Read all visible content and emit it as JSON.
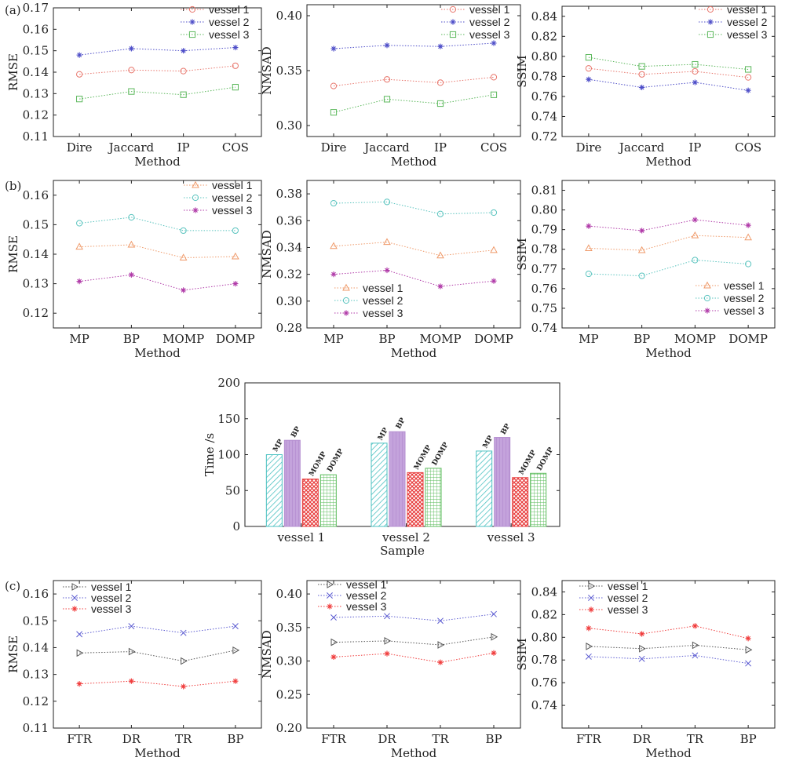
{
  "figure": {
    "panel_labels": [
      "(a)",
      "(b)",
      "(c)"
    ]
  },
  "colors": {
    "vessel1_a": "#e8766c",
    "vessel2_a": "#4d4dc8",
    "vessel3_a": "#5cb85c",
    "vessel1_b": "#ef9a6a",
    "vessel2_b": "#5bc4bf",
    "vessel3_b": "#b03aa8",
    "vessel1_c": "#555555",
    "vessel2_c": "#5b5bd1",
    "vessel3_c": "#f03c3c",
    "bar_MP": "#4dc2c2",
    "bar_BP": "#b58fd0",
    "bar_MOMP": "#e83c3c",
    "bar_DOMP": "#5cbc5c"
  },
  "chart_data": [
    {
      "id": "a-rmse",
      "type": "line",
      "panel": "(a)",
      "categories": [
        "Dire",
        "Jaccard",
        "IP",
        "COS"
      ],
      "xlabel": "Method",
      "ylabel": "RMSE",
      "ylim": [
        0.11,
        0.17
      ],
      "yticks": [
        "0.11",
        "0.12",
        "0.13",
        "0.14",
        "0.15",
        "0.16",
        "0.17"
      ],
      "legend": "top-right",
      "series": [
        {
          "name": "vessel 1",
          "marker": "circle",
          "color_key": "vessel1_a",
          "values": [
            0.139,
            0.141,
            0.1405,
            0.143
          ]
        },
        {
          "name": "vessel 2",
          "marker": "star",
          "color_key": "vessel2_a",
          "values": [
            0.148,
            0.151,
            0.15,
            0.1515
          ]
        },
        {
          "name": "vessel 3",
          "marker": "square",
          "color_key": "vessel3_a",
          "values": [
            0.1275,
            0.131,
            0.1295,
            0.133
          ]
        }
      ]
    },
    {
      "id": "a-nmsad",
      "type": "line",
      "panel": "(a)",
      "categories": [
        "Dire",
        "Jaccard",
        "IP",
        "COS"
      ],
      "xlabel": "Method",
      "ylabel": "NMSAD",
      "ylim": [
        0.29,
        0.41
      ],
      "yticks": [
        "0.30",
        "0.35",
        "0.40"
      ],
      "legend": "top-right",
      "series": [
        {
          "name": "vessel 1",
          "marker": "circle",
          "color_key": "vessel1_a",
          "values": [
            0.336,
            0.342,
            0.339,
            0.344
          ]
        },
        {
          "name": "vessel 2",
          "marker": "star",
          "color_key": "vessel2_a",
          "values": [
            0.37,
            0.373,
            0.372,
            0.375
          ]
        },
        {
          "name": "vessel 3",
          "marker": "square",
          "color_key": "vessel3_a",
          "values": [
            0.312,
            0.324,
            0.32,
            0.328
          ]
        }
      ]
    },
    {
      "id": "a-ssim",
      "type": "line",
      "panel": "(a)",
      "categories": [
        "Dire",
        "Jaccard",
        "IP",
        "COS"
      ],
      "xlabel": "Method",
      "ylabel": "SSIM",
      "ylim": [
        0.72,
        0.85
      ],
      "yticks": [
        "0.72",
        "0.74",
        "0.76",
        "0.78",
        "0.80",
        "0.82",
        "0.84"
      ],
      "legend": "top-right",
      "series": [
        {
          "name": "vessel 1",
          "marker": "circle",
          "color_key": "vessel1_a",
          "values": [
            0.788,
            0.782,
            0.785,
            0.779
          ]
        },
        {
          "name": "vessel 2",
          "marker": "star",
          "color_key": "vessel2_a",
          "values": [
            0.777,
            0.769,
            0.774,
            0.766
          ]
        },
        {
          "name": "vessel 3",
          "marker": "square",
          "color_key": "vessel3_a",
          "values": [
            0.799,
            0.79,
            0.792,
            0.787
          ]
        }
      ]
    },
    {
      "id": "b-rmse",
      "type": "line",
      "panel": "(b)",
      "categories": [
        "MP",
        "BP",
        "MOMP",
        "DOMP"
      ],
      "xlabel": "Method",
      "ylabel": "RMSE",
      "ylim": [
        0.115,
        0.165
      ],
      "yticks": [
        "0.12",
        "0.13",
        "0.14",
        "0.15",
        "0.16"
      ],
      "legend": "top-right",
      "series": [
        {
          "name": "vessel 1",
          "marker": "triangle",
          "color_key": "vessel1_b",
          "values": [
            0.1425,
            0.1432,
            0.1388,
            0.1392
          ]
        },
        {
          "name": "vessel 2",
          "marker": "circle",
          "color_key": "vessel2_b",
          "values": [
            0.1505,
            0.1525,
            0.148,
            0.148
          ]
        },
        {
          "name": "vessel 3",
          "marker": "star",
          "color_key": "vessel3_b",
          "values": [
            0.1308,
            0.133,
            0.1278,
            0.13
          ]
        }
      ]
    },
    {
      "id": "b-nmsad",
      "type": "line",
      "panel": "(b)",
      "categories": [
        "MP",
        "BP",
        "MOMP",
        "DOMP"
      ],
      "xlabel": "Method",
      "ylabel": "NMSAD",
      "ylim": [
        0.28,
        0.39
      ],
      "yticks": [
        "0.28",
        "0.30",
        "0.32",
        "0.34",
        "0.36",
        "0.38"
      ],
      "legend": "bottom-center",
      "series": [
        {
          "name": "vessel 1",
          "marker": "triangle",
          "color_key": "vessel1_b",
          "values": [
            0.341,
            0.344,
            0.334,
            0.338
          ]
        },
        {
          "name": "vessel 2",
          "marker": "circle",
          "color_key": "vessel2_b",
          "values": [
            0.373,
            0.374,
            0.365,
            0.366
          ]
        },
        {
          "name": "vessel 3",
          "marker": "star",
          "color_key": "vessel3_b",
          "values": [
            0.32,
            0.323,
            0.311,
            0.315
          ]
        }
      ]
    },
    {
      "id": "b-ssim",
      "type": "line",
      "panel": "(b)",
      "categories": [
        "MP",
        "BP",
        "MOMP",
        "DOMP"
      ],
      "xlabel": "Method",
      "ylabel": "SSIM",
      "ylim": [
        0.74,
        0.815
      ],
      "yticks": [
        "0.74",
        "0.75",
        "0.76",
        "0.77",
        "0.78",
        "0.79",
        "0.80",
        "0.81"
      ],
      "legend": "bottom-right",
      "series": [
        {
          "name": "vessel 1",
          "marker": "triangle",
          "color_key": "vessel1_b",
          "values": [
            0.7805,
            0.7795,
            0.787,
            0.786
          ]
        },
        {
          "name": "vessel 2",
          "marker": "circle",
          "color_key": "vessel2_b",
          "values": [
            0.7675,
            0.7665,
            0.7745,
            0.7725
          ]
        },
        {
          "name": "vessel 3",
          "marker": "star",
          "color_key": "vessel3_b",
          "values": [
            0.7918,
            0.7895,
            0.795,
            0.7922
          ]
        }
      ]
    },
    {
      "id": "time-bar",
      "type": "bar",
      "categories": [
        "vessel 1",
        "vessel 2",
        "vessel 3"
      ],
      "xlabel": "Sample",
      "ylabel": "Time /s",
      "ylim": [
        0,
        200
      ],
      "yticks": [
        "0",
        "50",
        "100",
        "150",
        "200"
      ],
      "series": [
        {
          "name": "MP",
          "color_key": "bar_MP",
          "values": [
            100,
            116,
            105
          ]
        },
        {
          "name": "BP",
          "color_key": "bar_BP",
          "values": [
            120,
            132,
            124
          ]
        },
        {
          "name": "MOMP",
          "color_key": "bar_MOMP",
          "values": [
            66,
            75,
            68
          ]
        },
        {
          "name": "DOMP",
          "color_key": "bar_DOMP",
          "values": [
            72,
            81,
            74
          ]
        }
      ]
    },
    {
      "id": "c-rmse",
      "type": "line",
      "panel": "(c)",
      "categories": [
        "FTR",
        "DR",
        "TR",
        "BP"
      ],
      "xlabel": "Method",
      "ylabel": "RMSE",
      "ylim": [
        0.11,
        0.165
      ],
      "yticks": [
        "0.11",
        "0.12",
        "0.13",
        "0.14",
        "0.15",
        "0.16"
      ],
      "legend": "top-left",
      "series": [
        {
          "name": "vessel 1",
          "marker": "triangle-right",
          "color_key": "vessel1_c",
          "values": [
            0.138,
            0.1385,
            0.135,
            0.139
          ]
        },
        {
          "name": "vessel 2",
          "marker": "x",
          "color_key": "vessel2_c",
          "values": [
            0.145,
            0.148,
            0.1455,
            0.148
          ]
        },
        {
          "name": "vessel 3",
          "marker": "star",
          "color_key": "vessel3_c",
          "values": [
            0.1265,
            0.1275,
            0.1255,
            0.1275
          ]
        }
      ]
    },
    {
      "id": "c-nmsad",
      "type": "line",
      "panel": "(c)",
      "categories": [
        "FTR",
        "DR",
        "TR",
        "BP"
      ],
      "xlabel": "Method",
      "ylabel": "NMSAD",
      "ylim": [
        0.2,
        0.42
      ],
      "yticks": [
        "0.20",
        "0.25",
        "0.30",
        "0.35",
        "0.40"
      ],
      "legend": "top-left",
      "series": [
        {
          "name": "vessel 1",
          "marker": "triangle-right",
          "color_key": "vessel1_c",
          "values": [
            0.328,
            0.33,
            0.324,
            0.336
          ]
        },
        {
          "name": "vessel 2",
          "marker": "x",
          "color_key": "vessel2_c",
          "values": [
            0.365,
            0.367,
            0.36,
            0.37
          ]
        },
        {
          "name": "vessel 3",
          "marker": "star",
          "color_key": "vessel3_c",
          "values": [
            0.306,
            0.311,
            0.298,
            0.312
          ]
        }
      ]
    },
    {
      "id": "c-ssim",
      "type": "line",
      "panel": "(c)",
      "categories": [
        "FTR",
        "DR",
        "TR",
        "BP"
      ],
      "xlabel": "Method",
      "ylabel": "SSIM",
      "ylim": [
        0.72,
        0.85
      ],
      "yticks": [
        "0.74",
        "0.76",
        "0.78",
        "0.80",
        "0.82",
        "0.84"
      ],
      "legend": "top-left",
      "series": [
        {
          "name": "vessel 1",
          "marker": "triangle-right",
          "color_key": "vessel1_c",
          "values": [
            0.792,
            0.79,
            0.793,
            0.789
          ]
        },
        {
          "name": "vessel 2",
          "marker": "x",
          "color_key": "vessel2_c",
          "values": [
            0.783,
            0.781,
            0.784,
            0.777
          ]
        },
        {
          "name": "vessel 3",
          "marker": "star",
          "color_key": "vessel3_c",
          "values": [
            0.808,
            0.803,
            0.81,
            0.799
          ]
        }
      ]
    }
  ]
}
